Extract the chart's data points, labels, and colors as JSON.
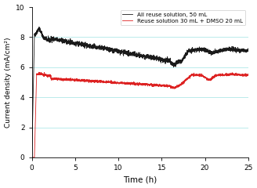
{
  "title": "",
  "xlabel": "Time (h)",
  "ylabel": "Current density (mA/cm²)",
  "xlim": [
    0,
    25
  ],
  "ylim": [
    0,
    10
  ],
  "xticks": [
    0,
    5,
    10,
    15,
    20,
    25
  ],
  "yticks": [
    0,
    2,
    4,
    6,
    8,
    10
  ],
  "legend1": "All reuse solution, 50 mL",
  "legend2": "Reuse solution 30 mL + DMSO 20 mL",
  "color_black": "#1a1a1a",
  "color_red": "#dd2222",
  "figsize": [
    3.28,
    2.4
  ],
  "dpi": 100,
  "bg_color": "#ffffff",
  "grid_color": "#b0e8e8"
}
